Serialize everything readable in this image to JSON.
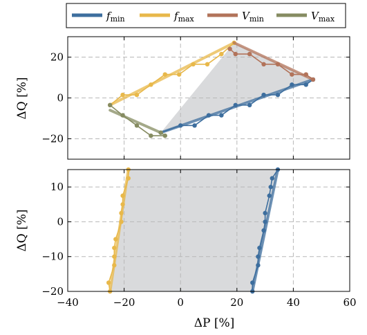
{
  "legend": [
    {
      "key": "fmin",
      "base": "f",
      "sub": "min",
      "color": "#3d6e9e"
    },
    {
      "key": "fmax",
      "base": "f",
      "sub": "max",
      "color": "#e8b84a"
    },
    {
      "key": "Vmin",
      "base": "V",
      "sub": "min",
      "color": "#b2735a"
    },
    {
      "key": "Vmax",
      "base": "V",
      "sub": "max",
      "color": "#868c62"
    }
  ],
  "chart_data": [
    {
      "type": "line",
      "xlabel": "",
      "ylabel": "ΔQ [%]",
      "xlim": [
        -40,
        60
      ],
      "ylim": [
        -30,
        30
      ],
      "xticks": [
        -40,
        -20,
        0,
        20,
        40,
        60
      ],
      "yticks": [
        -20,
        0,
        20
      ],
      "ytick_labels": [
        "−20",
        "0",
        "20"
      ],
      "show_xtick_labels": false,
      "grid": true,
      "region_polygon": [
        [
          -7,
          -17
        ],
        [
          19,
          27
        ],
        [
          47,
          9
        ]
      ],
      "series": [
        {
          "name": "fmin",
          "color": "#3d6e9e",
          "points": [
            [
              -7,
              -17
            ],
            [
              0,
              -13.5
            ],
            [
              5,
              -13.5
            ],
            [
              10,
              -8.5
            ],
            [
              14.5,
              -8.5
            ],
            [
              19.5,
              -3.5
            ],
            [
              24.5,
              -3.5
            ],
            [
              29.5,
              1.5
            ],
            [
              34.5,
              1.5
            ],
            [
              39.5,
              6.5
            ],
            [
              44.5,
              6.5
            ],
            [
              47,
              9
            ]
          ],
          "fit": [
            [
              -7,
              -17
            ],
            [
              47,
              9
            ]
          ]
        },
        {
          "name": "fmax",
          "color": "#e8b84a",
          "points": [
            [
              -25,
              -3.5
            ],
            [
              -20.5,
              1.5
            ],
            [
              -15.5,
              1.5
            ],
            [
              -10.5,
              6.5
            ],
            [
              -5.5,
              11.5
            ],
            [
              -0.5,
              11.5
            ],
            [
              4.5,
              16.5
            ],
            [
              9.5,
              16.5
            ],
            [
              14.5,
              21.5
            ],
            [
              19,
              27
            ]
          ],
          "fit": [
            [
              -25,
              -3.5
            ],
            [
              19,
              27
            ]
          ]
        },
        {
          "name": "Vmin",
          "color": "#b2735a",
          "points": [
            [
              17.5,
              24
            ],
            [
              19.5,
              21.5
            ],
            [
              24.5,
              21.5
            ],
            [
              29.5,
              16.5
            ],
            [
              34.5,
              16.5
            ],
            [
              39.5,
              11.5
            ],
            [
              44.5,
              11.5
            ],
            [
              47,
              9
            ]
          ],
          "fit": [
            [
              19,
              27
            ],
            [
              47,
              9
            ]
          ]
        },
        {
          "name": "Vmax",
          "color": "#868c62",
          "points": [
            [
              -25,
              -3.5
            ],
            [
              -20.5,
              -8.5
            ],
            [
              -15.5,
              -13.5
            ],
            [
              -10.5,
              -18.5
            ],
            [
              -5.5,
              -18.5
            ],
            [
              -7,
              -17
            ]
          ],
          "fit": [
            [
              -25,
              -6
            ],
            [
              -7,
              -17
            ]
          ]
        }
      ]
    },
    {
      "type": "line",
      "xlabel": "ΔP [%]",
      "ylabel": "ΔQ [%]",
      "xlim": [
        -40,
        60
      ],
      "ylim": [
        -20,
        15
      ],
      "xticks": [
        -40,
        -20,
        0,
        20,
        40,
        60
      ],
      "xtick_labels": [
        "−40",
        "−20",
        "0",
        "20",
        "40",
        "60"
      ],
      "yticks": [
        -20,
        -10,
        0,
        10
      ],
      "ytick_labels": [
        "−20",
        "−10",
        "0",
        "10"
      ],
      "show_xtick_labels": true,
      "grid": true,
      "region_polygon": [
        [
          -25,
          -20
        ],
        [
          -18.5,
          15
        ],
        [
          34.5,
          15
        ],
        [
          25.5,
          -20
        ]
      ],
      "series": [
        {
          "name": "fmin",
          "color": "#3d6e9e",
          "points": [
            [
              25.5,
              -20
            ],
            [
              25.5,
              -17.5
            ],
            [
              27.5,
              -12.5
            ],
            [
              27.5,
              -10
            ],
            [
              28,
              -7.5
            ],
            [
              29.5,
              -2.5
            ],
            [
              30,
              0
            ],
            [
              30,
              2.5
            ],
            [
              31.5,
              7.5
            ],
            [
              32,
              10
            ],
            [
              32.5,
              12.5
            ],
            [
              34.5,
              15
            ]
          ],
          "fit": [
            [
              25.5,
              -20
            ],
            [
              34.5,
              15
            ]
          ]
        },
        {
          "name": "fmax",
          "color": "#e8b84a",
          "points": [
            [
              -25,
              -20
            ],
            [
              -25.5,
              -17.5
            ],
            [
              -23.5,
              -12.5
            ],
            [
              -23.5,
              -10
            ],
            [
              -23.5,
              -7.5
            ],
            [
              -23,
              -5
            ],
            [
              -21,
              0
            ],
            [
              -21,
              2.5
            ],
            [
              -20.5,
              5
            ],
            [
              -20.5,
              7.5
            ],
            [
              -18.5,
              12.5
            ],
            [
              -18.5,
              15
            ]
          ],
          "fit": [
            [
              -25,
              -20
            ],
            [
              -18.5,
              15
            ]
          ]
        }
      ]
    }
  ]
}
